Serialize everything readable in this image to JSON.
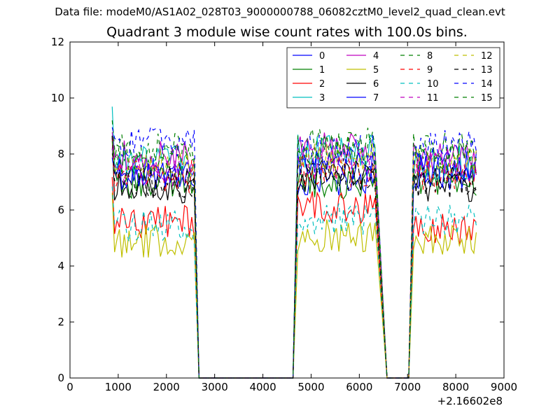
{
  "supertitle": "Data file: modeM0/AS1A02_028T03_9000000788_06082cztM0_level2_quad_clean.evt",
  "chart_data": {
    "type": "line",
    "title": "Quadrant 3 module wise count rates with 100.0s bins.",
    "xlabel": "",
    "ylabel": "",
    "x_offset_label": "+2.16602e8",
    "xlim": [
      0,
      9000
    ],
    "ylim": [
      0,
      12
    ],
    "xticks": [
      "0",
      "1000",
      "2000",
      "3000",
      "4000",
      "5000",
      "6000",
      "7000",
      "8000",
      "9000"
    ],
    "yticks": [
      "0",
      "2",
      "4",
      "6",
      "8",
      "10",
      "12"
    ],
    "legend_position": "top-right",
    "x_segments": [
      [
        875,
        2575
      ],
      [
        4725,
        6325
      ],
      [
        7125,
        8425
      ]
    ],
    "series": [
      {
        "name": "0",
        "color": "#0000ff",
        "dash": "solid",
        "levels": [
          7.3,
          7.1,
          7.6
        ]
      },
      {
        "name": "1",
        "color": "#008000",
        "dash": "solid",
        "levels": [
          7.0,
          7.0,
          7.1
        ]
      },
      {
        "name": "2",
        "color": "#ff0000",
        "dash": "solid",
        "levels": [
          5.6,
          6.1,
          5.3
        ]
      },
      {
        "name": "3",
        "color": "#00bfbf",
        "dash": "solid",
        "levels": [
          7.8,
          8.1,
          7.7
        ]
      },
      {
        "name": "4",
        "color": "#bf00bf",
        "dash": "solid",
        "levels": [
          7.9,
          8.2,
          7.8
        ]
      },
      {
        "name": "5",
        "color": "#bfbf00",
        "dash": "solid",
        "levels": [
          4.9,
          5.1,
          4.9
        ]
      },
      {
        "name": "6",
        "color": "#000000",
        "dash": "solid",
        "levels": [
          6.8,
          7.2,
          6.9
        ]
      },
      {
        "name": "7",
        "color": "#0000ff",
        "dash": "solid",
        "levels": [
          7.3,
          7.6,
          7.3
        ]
      },
      {
        "name": "8",
        "color": "#008000",
        "dash": "dashed",
        "levels": [
          8.2,
          8.4,
          8.2
        ]
      },
      {
        "name": "9",
        "color": "#ff0000",
        "dash": "dashed",
        "levels": [
          7.2,
          7.4,
          7.2
        ]
      },
      {
        "name": "10",
        "color": "#00bfbf",
        "dash": "dashed",
        "levels": [
          5.4,
          5.7,
          5.6
        ]
      },
      {
        "name": "11",
        "color": "#bf00bf",
        "dash": "dashed",
        "levels": [
          7.4,
          7.7,
          7.5
        ]
      },
      {
        "name": "12",
        "color": "#bfbf00",
        "dash": "dashed",
        "levels": [
          7.5,
          7.8,
          7.6
        ]
      },
      {
        "name": "13",
        "color": "#000000",
        "dash": "dashed",
        "levels": [
          7.0,
          7.3,
          7.0
        ]
      },
      {
        "name": "14",
        "color": "#0000ff",
        "dash": "dashed",
        "levels": [
          8.4,
          8.1,
          8.3
        ]
      },
      {
        "name": "15",
        "color": "#008000",
        "dash": "dashed",
        "levels": [
          7.8,
          8.1,
          7.9
        ]
      }
    ]
  }
}
